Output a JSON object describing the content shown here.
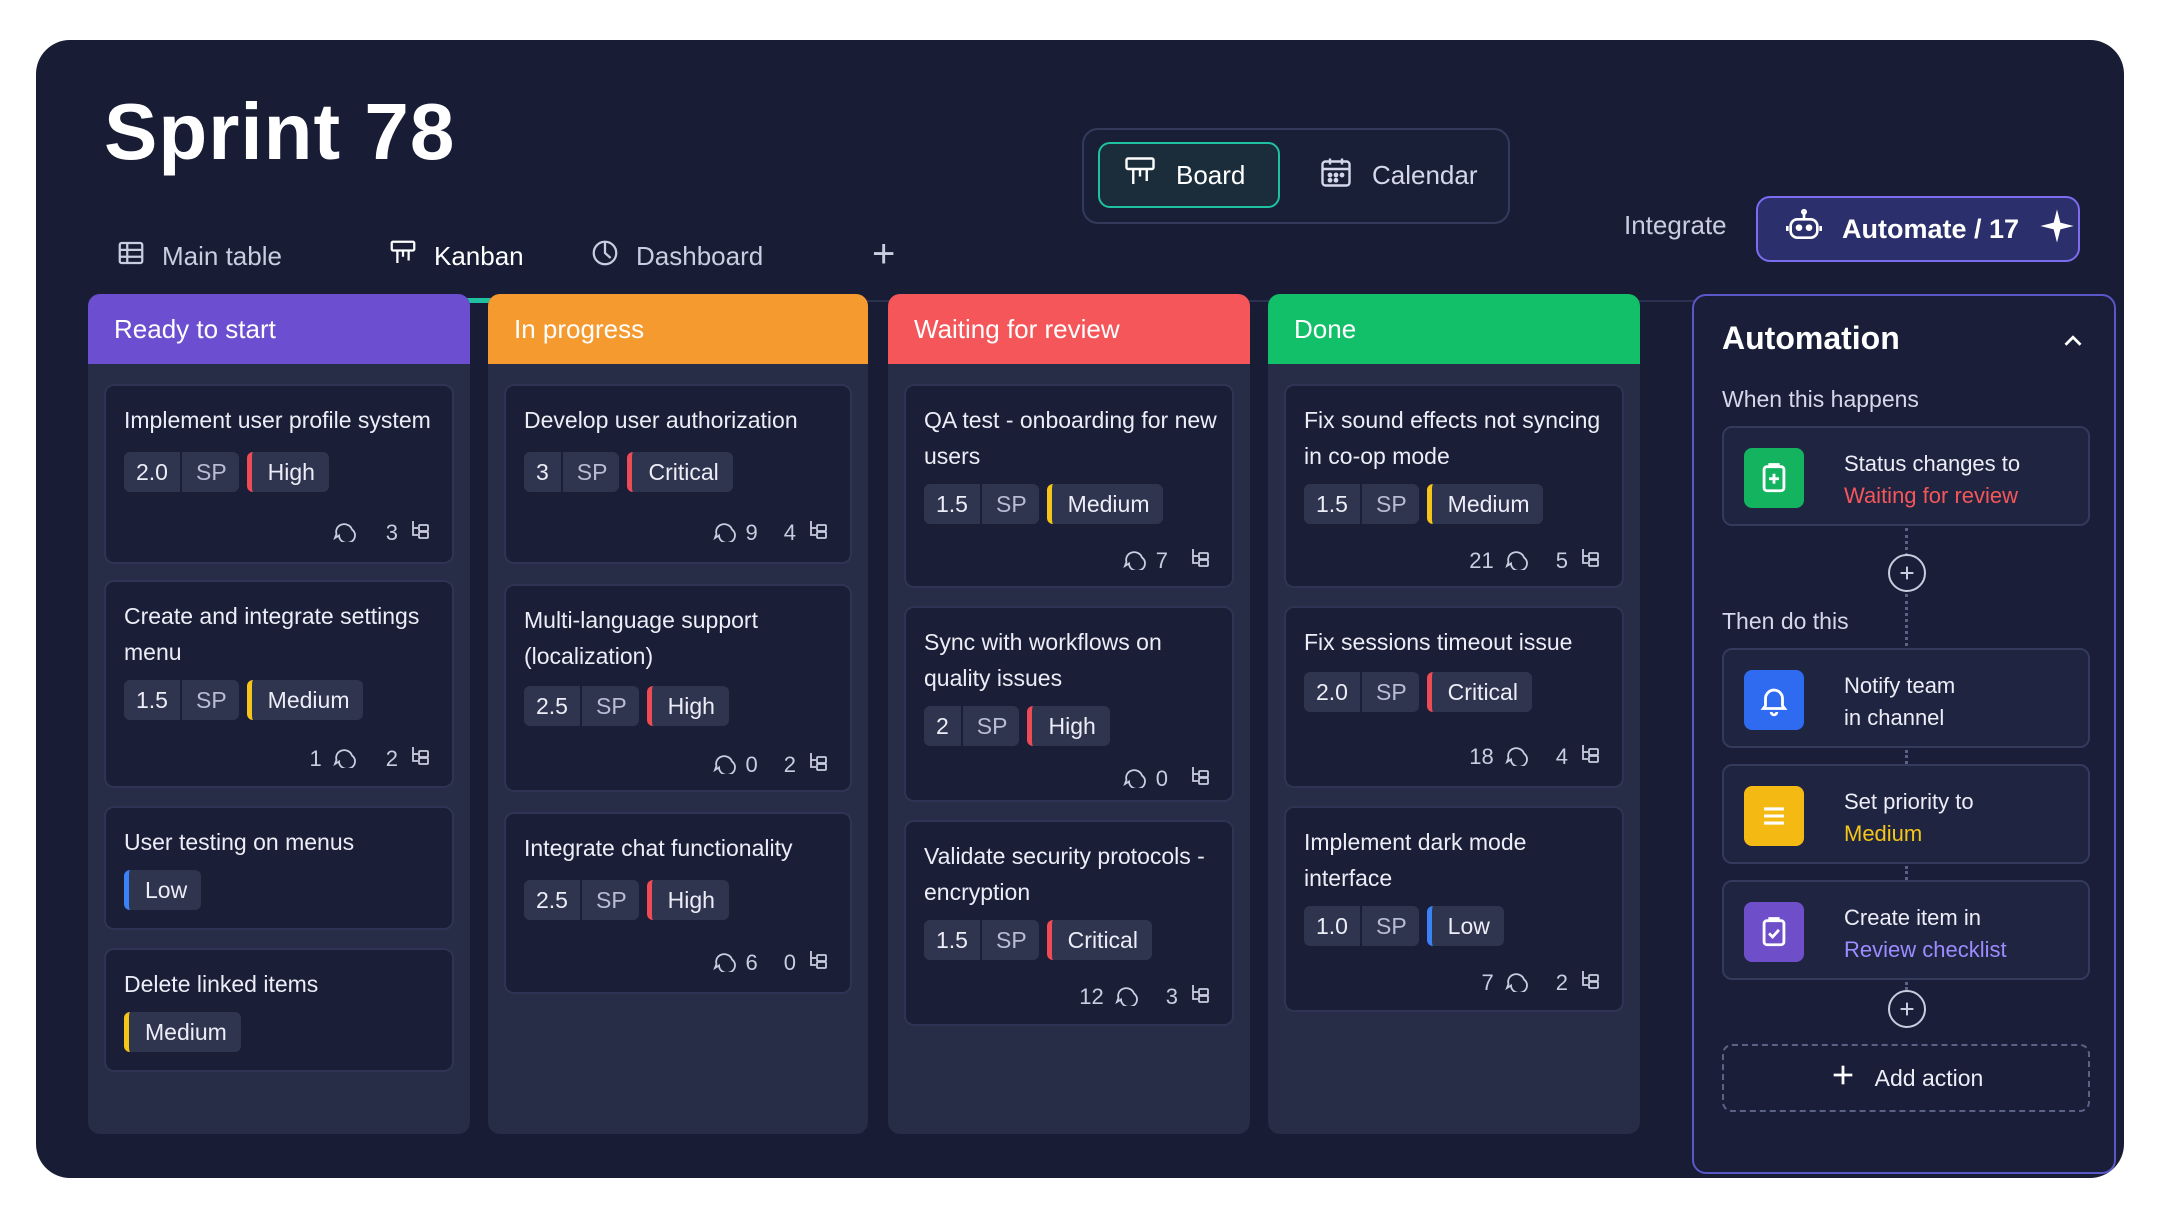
{
  "board": {
    "title": "Sprint 78",
    "tabs": [
      {
        "label": "Main table",
        "icon": "grid-icon"
      },
      {
        "label": "Kanban",
        "icon": "kanban-icon",
        "active": true
      },
      {
        "label": "Dashboard",
        "icon": "clock-icon"
      }
    ],
    "view_switch": {
      "board": "Board",
      "calendar": "Calendar",
      "selected": "Board"
    },
    "integrate": "Integrate",
    "automate": "Automate / 17"
  },
  "colors": {
    "ready": "#6b4fd0",
    "in_progress": "#f59a2f",
    "waiting": "#f4565a",
    "done": "#13c06a",
    "accent": "#1fc1a0",
    "critical": "#ef4b55",
    "medium": "#f5c518",
    "low": "#3b82f6"
  },
  "columns": [
    {
      "name": "Ready to start",
      "cards": [
        {
          "title": "Implement user profile system",
          "sp": "2.0",
          "sp_unit": "SP",
          "priority": "High",
          "comments": "",
          "subitems": "3"
        },
        {
          "title": "Create and integrate settings menu",
          "sp": "1.5",
          "sp_unit": "SP",
          "priority": "Medium",
          "comments": "1",
          "subitems": "2"
        },
        {
          "title": "User testing on menus",
          "priority": "Low"
        },
        {
          "title": "Delete linked items",
          "priority": "Medium"
        }
      ]
    },
    {
      "name": "In progress",
      "cards": [
        {
          "title": "Develop user authorization",
          "sp": "3",
          "sp_unit": "SP",
          "priority": "Critical",
          "comments": "9",
          "subitems": "4"
        },
        {
          "title": "Multi-language support (localization)",
          "sp": "2.5",
          "sp_unit": "SP",
          "priority": "High",
          "comments": "0",
          "subitems": "2"
        },
        {
          "title": "Integrate chat functionality",
          "sp": "2.5",
          "sp_unit": "SP",
          "priority": "High",
          "comments": "6",
          "subitems": "0"
        }
      ]
    },
    {
      "name": "Waiting for review",
      "cards": [
        {
          "title": "QA test - onboarding for new users",
          "sp": "1.5",
          "sp_unit": "SP",
          "priority": "Medium",
          "comments": "7",
          "subitems": ""
        },
        {
          "title": "Sync with workflows on quality issues",
          "sp": "2",
          "sp_unit": "SP",
          "priority": "High",
          "comments": "0",
          "subitems": ""
        },
        {
          "title": "Validate security protocols - encryption",
          "sp": "1.5",
          "sp_unit": "SP",
          "priority": "Critical",
          "comments": "12",
          "subitems": "3"
        }
      ]
    },
    {
      "name": "Done",
      "cards": [
        {
          "title": "Fix sound effects not syncing in co-op mode",
          "sp": "1.5",
          "sp_unit": "SP",
          "priority": "Medium",
          "comments": "21",
          "subitems": "5"
        },
        {
          "title": "Fix sessions timeout issue",
          "sp": "2.0",
          "sp_unit": "SP",
          "priority": "Critical",
          "comments": "18",
          "subitems": "4"
        },
        {
          "title": "Implement dark mode interface",
          "sp": "1.0",
          "sp_unit": "SP",
          "priority": "Low",
          "comments": "7",
          "subitems": "2"
        }
      ]
    }
  ],
  "automation": {
    "title": "Automation",
    "when_label": "When this happens",
    "trigger": {
      "line1": "Status changes to",
      "line2": "Waiting for review",
      "line2_color": "#f4565a"
    },
    "then_label": "Then do this",
    "actions": [
      {
        "line1": "Notify team",
        "line2": "in channel",
        "icon": "bell-icon",
        "icon_bg": "#2f6bf0"
      },
      {
        "line1": "Set priority to",
        "line2": "Medium",
        "line2_color": "#f5c518",
        "icon": "list-icon",
        "icon_bg": "#f5b914"
      },
      {
        "line1": "Create item in",
        "line2": "Review checklist",
        "line2_color": "#9b8cff",
        "icon": "clipboard-icon",
        "icon_bg": "#6e4fc9"
      }
    ],
    "add_action": "Add action"
  }
}
